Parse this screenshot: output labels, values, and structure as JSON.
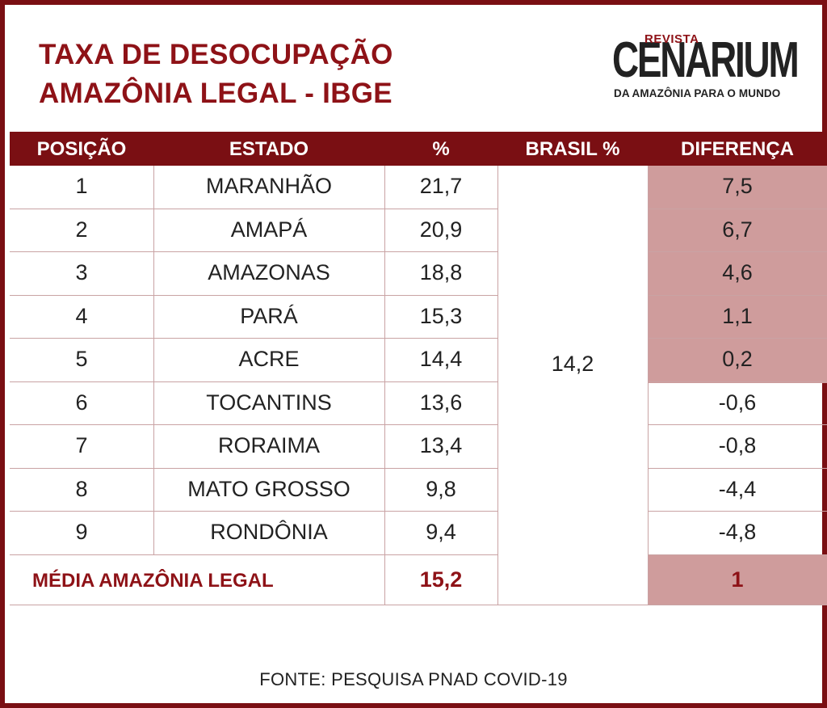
{
  "title": {
    "line1": "TAXA DE DESOCUPAÇÃO",
    "line2": "AMAZÔNIA LEGAL - IBGE"
  },
  "logo": {
    "revista": "REVISTA",
    "name": "CENARIUM",
    "tagline": "DA AMAZÔNIA PARA O MUNDO"
  },
  "table": {
    "headers": [
      "POSIÇÃO",
      "ESTADO",
      "%",
      "BRASIL %",
      "DIFERENÇA"
    ],
    "brasil_value": "14,2",
    "rows": [
      {
        "pos": "1",
        "estado": "MARANHÃO",
        "pct": "21,7",
        "diff": "7,5",
        "positive": true
      },
      {
        "pos": "2",
        "estado": "AMAPÁ",
        "pct": "20,9",
        "diff": "6,7",
        "positive": true
      },
      {
        "pos": "3",
        "estado": "AMAZONAS",
        "pct": "18,8",
        "diff": "4,6",
        "positive": true
      },
      {
        "pos": "4",
        "estado": "PARÁ",
        "pct": "15,3",
        "diff": "1,1",
        "positive": true
      },
      {
        "pos": "5",
        "estado": "ACRE",
        "pct": "14,4",
        "diff": "0,2",
        "positive": true
      },
      {
        "pos": "6",
        "estado": "TOCANTINS",
        "pct": "13,6",
        "diff": "-0,6",
        "positive": false
      },
      {
        "pos": "7",
        "estado": "RORAIMA",
        "pct": "13,4",
        "diff": "-0,8",
        "positive": false
      },
      {
        "pos": "8",
        "estado": "MATO GROSSO",
        "pct": "9,8",
        "diff": "-4,4",
        "positive": false
      },
      {
        "pos": "9",
        "estado": "RONDÔNIA",
        "pct": "9,4",
        "diff": "-4,8",
        "positive": false
      }
    ],
    "media": {
      "label": "MÉDIA AMAZÔNIA LEGAL",
      "pct": "15,2",
      "diff": "1"
    }
  },
  "source": "FONTE:  PESQUISA PNAD COVID-19",
  "colors": {
    "brand": "#7a0f13",
    "title_red": "#8e1217",
    "highlight": "#cf9c9c"
  }
}
